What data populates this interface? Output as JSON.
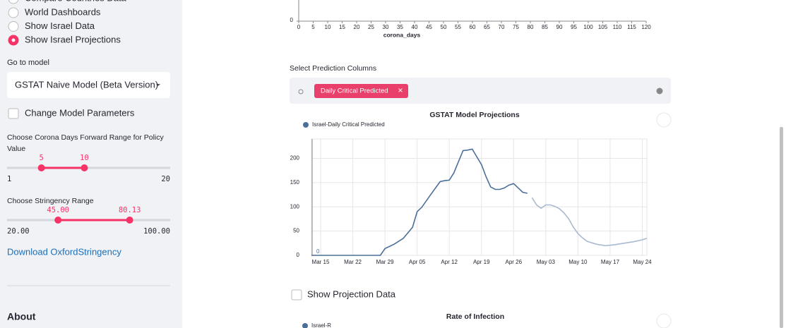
{
  "sidebar": {
    "radio_cut": "Compare Countries Data",
    "radio_options": [
      "World Dashboards",
      "Show Israel Data",
      "Show Israel Projections"
    ],
    "radio_selected": 2,
    "select_label": "Go to model",
    "select_value": "GSTAT Naive Model (Beta Version)",
    "checkbox_label": "Change Model Parameters",
    "slider1": {
      "label": "Choose Corona Days Forward Range for Policy Value",
      "values": [
        5,
        10
      ],
      "min": 1,
      "max": 20
    },
    "slider2": {
      "label": "Choose Stringency Range",
      "values": [
        {
          "value": 45,
          "label": "45.00"
        },
        {
          "value": 80.13,
          "label": "80.13"
        }
      ],
      "min": {
        "value": 20,
        "label": "20.00"
      },
      "max": {
        "value": 100,
        "label": "100.00"
      }
    },
    "link": "Download OxfordStringency",
    "about": "About"
  },
  "main": {
    "top_chart": {
      "type": "line",
      "xlabel": "corona_days",
      "xlim": [
        0,
        120
      ],
      "xticks": [
        0,
        5,
        10,
        15,
        20,
        25,
        30,
        35,
        40,
        45,
        50,
        55,
        60,
        65,
        70,
        75,
        80,
        85,
        90,
        95,
        100,
        105,
        110,
        115,
        120
      ],
      "yticks": [
        0
      ]
    },
    "select_label": "Select Prediction Columns",
    "selected_tag": "Daily Critical Predicted",
    "chart": {
      "type": "line",
      "title": "GSTAT Model Projections",
      "annotation": "0",
      "xlim": [
        "Mar 13",
        "May 25"
      ],
      "ylim": [
        0,
        240
      ],
      "xticks": [
        "Mar 15",
        "Mar 22",
        "Mar 29",
        "Apr 05",
        "Apr 12",
        "Apr 19",
        "Apr 26",
        "May 03",
        "May 10",
        "May 17",
        "May 24"
      ],
      "yticks": [
        0,
        50,
        100,
        150,
        200
      ],
      "grid": true,
      "series": [
        {
          "name": "Israel-Daily Critical Predicted",
          "color": "#4b6f99",
          "x": [
            "Mar 13",
            "Mar 20",
            "Mar 28",
            "Mar 29",
            "Mar 31",
            "Apr 02",
            "Apr 04",
            "Apr 05",
            "Apr 06",
            "Apr 08",
            "Apr 10",
            "Apr 11",
            "Apr 12",
            "Apr 13",
            "Apr 15",
            "Apr 16",
            "Apr 17",
            "Apr 18",
            "Apr 19",
            "Apr 20",
            "Apr 21",
            "Apr 22",
            "Apr 23",
            "Apr 24",
            "Apr 25",
            "Apr 26",
            "Apr 27",
            "Apr 28",
            "Apr 29"
          ],
          "values": [
            0,
            0,
            0,
            14,
            23,
            35,
            58,
            90,
            99,
            126,
            152,
            154,
            155,
            170,
            216,
            217,
            219,
            203,
            187,
            162,
            141,
            136,
            136,
            139,
            145,
            148,
            139,
            130,
            128
          ]
        },
        {
          "color": "#a9b9d0",
          "x": [
            "Apr 30",
            "May 01",
            "May 02",
            "May 03",
            "May 04",
            "May 05",
            "May 06",
            "May 07",
            "May 08",
            "May 09",
            "May 10",
            "May 11",
            "May 12",
            "May 14",
            "May 16",
            "May 18",
            "May 20",
            "May 22",
            "May 24",
            "May 25"
          ],
          "values": [
            119,
            104,
            97,
            104,
            104,
            101,
            96,
            87,
            75,
            58,
            45,
            36,
            29,
            23,
            20,
            22,
            25,
            28,
            32,
            35
          ]
        }
      ]
    },
    "checkbox_label": "Show Projection Data",
    "next_chart": {
      "title": "Rate of Infection",
      "legend": "Israel-R"
    }
  }
}
